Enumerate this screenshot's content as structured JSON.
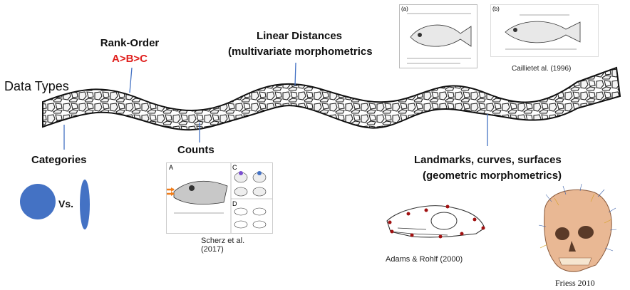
{
  "title": "Data Types",
  "labels": {
    "rank_order": "Rank-Order",
    "rank_order_example": "A>B>C",
    "linear_distances": "Linear Distances",
    "linear_distances_sub": "(multivariate morphometrics",
    "categories": "Categories",
    "categories_vs": "Vs.",
    "counts": "Counts",
    "landmarks": "Landmarks, curves, surfaces",
    "landmarks_sub": "(geometric morphometrics)"
  },
  "captions": {
    "caillet": "Caillietet al. (1996)",
    "scherz": "Scherz et al.\n(2017)",
    "adams": "Adams & Rohlf (2000)",
    "friess": "Friess  2010"
  },
  "figure_labels": {
    "fish_a": "(a)",
    "fish_b": "(b)",
    "lizard_a": "A",
    "lizard_c": "C",
    "lizard_d": "D"
  },
  "colors": {
    "accent_red": "#e0201e",
    "circle_blue": "#4472c4",
    "arrow_orange": "#f07d1b"
  }
}
